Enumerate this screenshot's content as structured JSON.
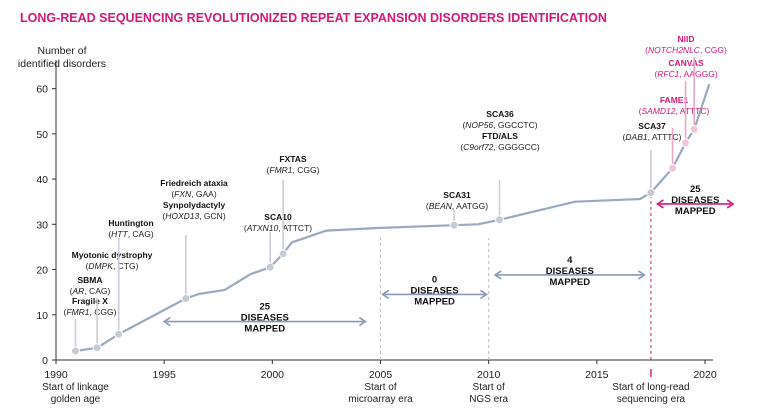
{
  "title": "LONG-READ SEQUENCING REVOLUTIONIZED REPEAT EXPANSION DISORDERS IDENTIFICATION",
  "ylabel_lines": [
    "Number of",
    "identified disorders"
  ],
  "colors": {
    "title": "#d6187c",
    "line": "#9aa9c0",
    "marker": "#c7cbd2",
    "accent": "#d6187c",
    "arrow": "#8a9ab5"
  },
  "chart_data": {
    "type": "line",
    "xlim": [
      1990,
      2020
    ],
    "ylim": [
      0,
      65
    ],
    "x_ticks": [
      1990,
      1995,
      2000,
      2005,
      2010,
      2015,
      2020
    ],
    "y_ticks": [
      0,
      10,
      20,
      30,
      40,
      50,
      60
    ],
    "grid": false,
    "series": [
      {
        "x": [
          1990.9,
          1991.9,
          1992.9,
          1996.0,
          1996.6,
          1997.8,
          1999.0,
          1999.9,
          2000.5,
          2000.9,
          2002.5,
          2005.0,
          2008.4,
          2009.5,
          2010.5,
          2014.0,
          2017.0,
          2017.5,
          2018.5,
          2019.1,
          2019.5,
          2020.2
        ],
        "y": [
          2,
          2.7,
          5.7,
          13.6,
          14.6,
          15.5,
          19,
          20.5,
          23.5,
          26,
          28.6,
          29.2,
          29.8,
          30,
          31,
          35,
          35.6,
          37,
          42.4,
          48,
          51,
          61
        ]
      }
    ],
    "annotations": [
      {
        "year": 1990.9,
        "value": 2,
        "lines": [
          {
            "b": "Fragile X"
          },
          {
            "i": "FMR1",
            "n": ", CGG)"
          }
        ]
      },
      {
        "year": 1991.9,
        "value": 2.7,
        "lines": [
          {
            "b": "SBMA"
          },
          {
            "i": "AR",
            "n": ", CAG)"
          }
        ]
      },
      {
        "year": 1992.9,
        "value": 5.7,
        "lines": [
          {
            "b": "Myotonic dystrophy"
          },
          {
            "i": "DMPK",
            "n": ", CTG)"
          }
        ]
      },
      {
        "year": 1992.9,
        "value": 5.7,
        "lines": [
          {
            "b": "Huntington"
          },
          {
            "i": "HTT",
            "n": ", CAG)"
          }
        ]
      },
      {
        "year": 1996.0,
        "value": 13.6,
        "lines": [
          {
            "b": "Friedreich ataxia"
          },
          {
            "i": "FXN",
            "n": ", GAA)"
          },
          {
            "b": "Synpolydactyly"
          },
          {
            "i": "HOXD13",
            "n": ", GCN)"
          }
        ]
      },
      {
        "year": 1999.9,
        "value": 20.5,
        "lines": [
          {
            "b": "SCA10"
          },
          {
            "i": "ATXN10",
            "n": ", ATTCT)"
          }
        ]
      },
      {
        "year": 2000.5,
        "value": 23.5,
        "lines": [
          {
            "b": "FXTAS"
          },
          {
            "i": "FMR1",
            "n": ", CGG)"
          }
        ]
      },
      {
        "year": 2008.4,
        "value": 29.8,
        "lines": [
          {
            "b": "SCA31"
          },
          {
            "i": "BEAN",
            "n": ", AATGG)"
          }
        ]
      },
      {
        "year": 2010.5,
        "value": 31,
        "lines": [
          {
            "b": "SCA36"
          },
          {
            "i": "NOP56",
            "n": ", GGCCTC)"
          },
          {
            "b": "FTD/ALS"
          },
          {
            "i": "C9orf72",
            "n": ", GGGGCC)"
          }
        ]
      },
      {
        "year": 2017.5,
        "value": 37,
        "lines": [
          {
            "b": "SCA37"
          },
          {
            "i": "DAB1",
            "n": ", ATTTC)"
          }
        ]
      },
      {
        "year": 2018.5,
        "value": 42.4,
        "pink": true,
        "lines": [
          {
            "b": "FAME1"
          },
          {
            "i": "SAMD12",
            "n": ", ATTTC)"
          }
        ]
      },
      {
        "year": 2019.1,
        "value": 48,
        "pink": true,
        "lines": [
          {
            "b": "CANVAS"
          },
          {
            "i": "RFC1",
            "n": ", AAGGG)"
          }
        ]
      },
      {
        "year": 2019.5,
        "value": 51,
        "pink": true,
        "lines": [
          {
            "b": "NIID"
          },
          {
            "i": "NOTCH2NLC",
            "n": ", CGG)"
          }
        ]
      }
    ],
    "eras": [
      {
        "year": 1990.9,
        "lines": [
          "Start of linkage",
          "golden age"
        ],
        "pink": false
      },
      {
        "year": 2005,
        "lines": [
          "Start of",
          "microarray era"
        ],
        "pink": false
      },
      {
        "year": 2010,
        "lines": [
          "Start of",
          "NGS era"
        ],
        "pink": false
      },
      {
        "year": 2017.5,
        "lines": [
          "Start of long-read",
          "sequencing era"
        ],
        "pink": true
      }
    ],
    "ranges": [
      {
        "from": 1995,
        "to": 2004.3,
        "lines": [
          "25",
          "DISEASES",
          "MAPPED"
        ]
      },
      {
        "from": 2005.1,
        "to": 2009.9,
        "lines": [
          "0",
          "DISEASES",
          "MAPPED"
        ]
      },
      {
        "from": 2010.3,
        "to": 2017.2,
        "lines": [
          "4",
          "DISEASES",
          "MAPPED"
        ]
      },
      {
        "from": 2017.8,
        "to": 2021.3,
        "lines": [
          "25",
          "DISEASES",
          "MAPPED"
        ],
        "pink": true
      }
    ]
  }
}
